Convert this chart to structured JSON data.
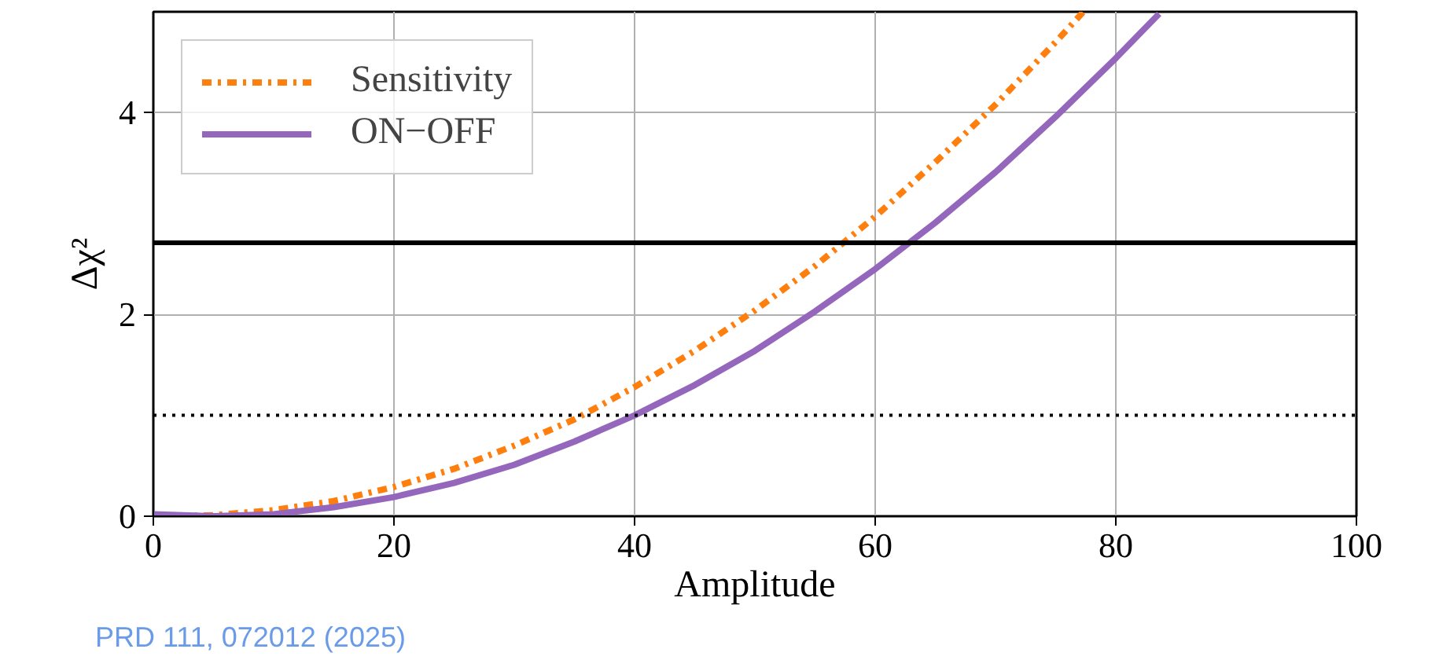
{
  "chart_data": {
    "type": "line",
    "xlabel": "Amplitude",
    "ylabel": "Δχ²",
    "x": [
      0,
      5,
      10,
      15,
      20,
      25,
      30,
      35,
      40,
      45,
      50,
      55,
      60,
      65,
      70,
      75,
      80,
      83.6
    ],
    "series": [
      {
        "name": "Sensitivity",
        "color": "#ff7f0e",
        "line_style": "dashdot",
        "x": [
          0,
          5,
          10,
          15,
          20,
          25,
          30,
          35,
          40,
          45,
          50,
          55,
          60,
          65,
          70,
          75,
          77.3
        ],
        "values": [
          0.0,
          0.01,
          0.06,
          0.15,
          0.29,
          0.47,
          0.7,
          0.96,
          1.28,
          1.64,
          2.04,
          2.48,
          2.97,
          3.51,
          4.08,
          4.7,
          5.0
        ]
      },
      {
        "name": "ON−OFF",
        "color": "#9467bd",
        "line_style": "solid",
        "values": [
          0.02,
          0.0,
          0.02,
          0.09,
          0.19,
          0.33,
          0.51,
          0.74,
          1.0,
          1.3,
          1.64,
          2.03,
          2.45,
          2.91,
          3.41,
          3.96,
          4.54,
          4.98
        ]
      }
    ],
    "ref_lines": [
      {
        "axis": "y",
        "value": 2.71,
        "color": "#000000",
        "line_style": "solid"
      },
      {
        "axis": "y",
        "value": 1,
        "color": "#000000",
        "line_style": "dotted"
      }
    ],
    "xlim": [
      0,
      100
    ],
    "xticks": [
      0,
      20,
      40,
      60,
      80,
      100
    ],
    "ylim": [
      0,
      5
    ],
    "yticks": [
      0,
      2,
      4
    ],
    "grid": true,
    "legend": "top left",
    "marker": "none",
    "annotations": [
      "PRD 111, 072012 (2025)"
    ]
  }
}
